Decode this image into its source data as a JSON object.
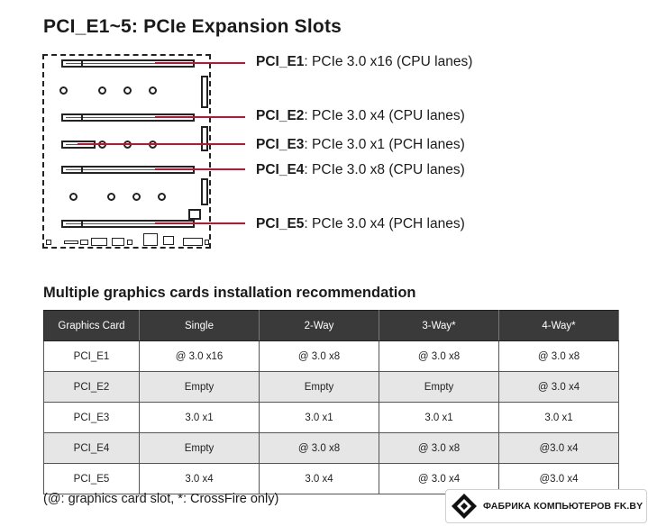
{
  "heading": "PCI_E1~5: PCIe Expansion Slots",
  "slots": [
    {
      "id": "PCI_E1",
      "desc": ": PCIe 3.0 x16 (CPU lanes)"
    },
    {
      "id": "PCI_E2",
      "desc": ": PCIe 3.0 x4 (CPU lanes)"
    },
    {
      "id": "PCI_E3",
      "desc": ": PCIe 3.0 x1 (PCH lanes)"
    },
    {
      "id": "PCI_E4",
      "desc": ": PCIe 3.0 x8 (CPU lanes)"
    },
    {
      "id": "PCI_E5",
      "desc": ": PCIe 3.0 x4 (PCH lanes)"
    }
  ],
  "accent_color": "#c8102e",
  "table_title": "Multiple graphics cards installation recommendation",
  "table": {
    "headers": [
      "Graphics Card",
      "Single",
      "2-Way",
      "3-Way*",
      "4-Way*"
    ],
    "rows": [
      [
        "PCI_E1",
        "@ 3.0 x16",
        "@ 3.0 x8",
        "@ 3.0 x8",
        "@ 3.0 x8"
      ],
      [
        "PCI_E2",
        "Empty",
        "Empty",
        "Empty",
        "@ 3.0 x4"
      ],
      [
        "PCI_E3",
        "3.0 x1",
        "3.0 x1",
        "3.0 x1",
        "3.0 x1"
      ],
      [
        "PCI_E4",
        "Empty",
        "@ 3.0 x8",
        "@ 3.0 x8",
        "@3.0 x4"
      ],
      [
        "PCI_E5",
        "3.0 x4",
        "3.0 x4",
        "@ 3.0 x4",
        "@3.0 x4"
      ]
    ]
  },
  "footnote": "(@: graphics card slot, *: CrossFire only)",
  "watermark_text": "ФАБРИКА КОМПЬЮТЕРОВ FK.BY",
  "watermark_icon": "diamond-logo-icon"
}
